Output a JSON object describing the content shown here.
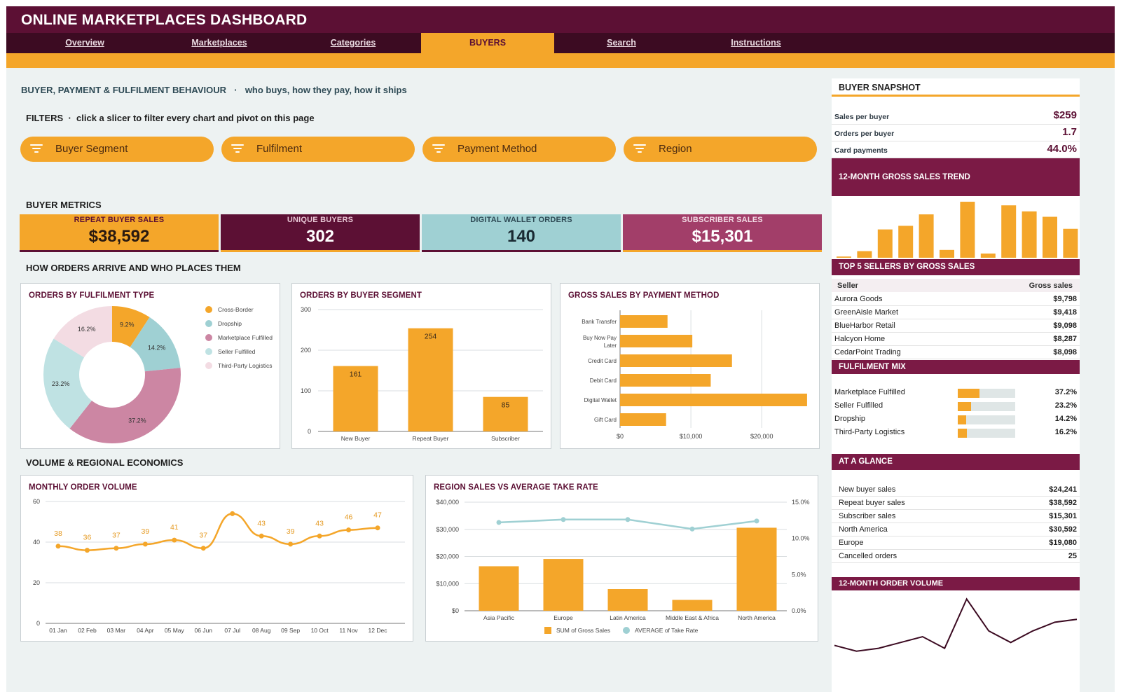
{
  "header": {
    "title": "ONLINE MARKETPLACES DASHBOARD"
  },
  "tabs": [
    {
      "label": "Overview",
      "active": false
    },
    {
      "label": "Marketplaces",
      "active": false
    },
    {
      "label": "Categories",
      "active": false
    },
    {
      "label": "BUYERS",
      "active": true
    },
    {
      "label": "Search",
      "active": false
    },
    {
      "label": "Instructions",
      "active": false
    }
  ],
  "page": {
    "heading": "BUYER, PAYMENT & FULFILMENT BEHAVIOUR",
    "heading_sub": "who buys, how they pay, how it ships",
    "filters_label": "FILTERS",
    "filters_hint": "click a slicer to filter every chart and pivot on this page"
  },
  "slicers": [
    {
      "label": "Buyer Segment"
    },
    {
      "label": "Fulfilment"
    },
    {
      "label": "Payment Method"
    },
    {
      "label": "Region"
    }
  ],
  "metrics_title": "BUYER METRICS",
  "kpis": [
    {
      "label": "REPEAT BUYER SALES",
      "value": "$38,592",
      "bg": "#f4a62a",
      "fg": "#5c1034",
      "valcolor": "#2a1a10",
      "underline": "#5c1034"
    },
    {
      "label": "UNIQUE BUYERS",
      "value": "302",
      "bg": "#5c1034",
      "fg": "#e8c7d5",
      "valcolor": "#ffffff",
      "underline": "#f4a62a"
    },
    {
      "label": "DIGITAL WALLET ORDERS",
      "value": "140",
      "bg": "#9fd0d3",
      "fg": "#2e4a55",
      "valcolor": "#1a2a33",
      "underline": "#5c1034"
    },
    {
      "label": "SUBSCRIBER SALES",
      "value": "$15,301",
      "bg": "#a23e69",
      "fg": "#f2dbe5",
      "valcolor": "#ffffff",
      "underline": "#f4a62a"
    }
  ],
  "section_orders": "HOW ORDERS ARRIVE AND WHO PLACES THEM",
  "section_volume": "VOLUME & REGIONAL ECONOMICS",
  "charts": {
    "fulfilment_type": {
      "title": "ORDERS BY FULFILMENT TYPE",
      "chart_data": {
        "type": "pie",
        "labels": [
          "Cross-Border",
          "Dropship",
          "Marketplace Fulfilled",
          "Seller Fulfilled",
          "Third-Party Logistics"
        ],
        "values": [
          9.2,
          14.2,
          37.2,
          23.2,
          16.2
        ],
        "value_labels": [
          "9.2%",
          "14.2%",
          "37.2%",
          "23.2%",
          "16.2%"
        ],
        "colors": [
          "#f4a62a",
          "#9fd0d3",
          "#cc86a3",
          "#bfe2e3",
          "#f3dce3"
        ],
        "legend": "right"
      }
    },
    "buyer_segment": {
      "title": "ORDERS BY BUYER SEGMENT",
      "chart_data": {
        "type": "bar",
        "categories": [
          "New Buyer",
          "Repeat Buyer",
          "Subscriber"
        ],
        "values": [
          161,
          254,
          85
        ],
        "ylim": [
          0,
          300
        ],
        "yticks": [
          "0",
          "100",
          "200",
          "300"
        ],
        "grid": true
      }
    },
    "payment_method": {
      "title": "GROSS SALES BY PAYMENT METHOD",
      "chart_data": {
        "type": "bar",
        "orientation": "horizontal",
        "categories": [
          "Bank Transfer",
          "Buy Now Pay Later",
          "Credit Card",
          "Debit Card",
          "Digital Wallet",
          "Gift Card"
        ],
        "category_lines": [
          [
            "Bank Transfer"
          ],
          [
            "Buy Now Pay",
            "Later"
          ],
          [
            "Credit Card"
          ],
          [
            "Debit Card"
          ],
          [
            "Digital Wallet"
          ],
          [
            "Gift Card"
          ]
        ],
        "values": [
          6700,
          10200,
          15800,
          12800,
          26400,
          6500
        ],
        "xlim": [
          0,
          27000
        ],
        "xticks": [
          "$0",
          "$10,000",
          "$20,000"
        ],
        "grid": true
      }
    },
    "monthly_volume": {
      "title": "MONTHLY ORDER VOLUME",
      "chart_data": {
        "type": "line",
        "x": [
          "01 Jan",
          "02 Feb",
          "03 Mar",
          "04 Apr",
          "05 May",
          "06 Jun",
          "07 Jul",
          "08 Aug",
          "09 Sep",
          "10 Oct",
          "11 Nov",
          "12 Dec"
        ],
        "values": [
          38,
          36,
          37,
          39,
          41,
          37,
          54,
          43,
          39,
          43,
          46,
          47
        ],
        "labels": [
          "38",
          "36",
          "37",
          "39",
          "41",
          "37",
          "",
          "43",
          "39",
          "43",
          "46",
          "47"
        ],
        "ylim": [
          0,
          60
        ],
        "yticks": [
          "0",
          "20",
          "40",
          "60"
        ],
        "grid": true
      }
    },
    "region_sales": {
      "title": "REGION SALES VS AVERAGE TAKE RATE",
      "chart_data": {
        "type": "bar",
        "categories": [
          "Asia Pacific",
          "Europe",
          "Latin America",
          "Middle East & Africa",
          "North America"
        ],
        "series": [
          {
            "name": "SUM of Gross Sales",
            "type": "bar",
            "values": [
              16400,
              19080,
              8000,
              4000,
              30592
            ]
          },
          {
            "name": "AVERAGE of Take Rate",
            "type": "line",
            "values": [
              12.2,
              12.6,
              12.6,
              11.3,
              12.4
            ]
          }
        ],
        "ylim": [
          0,
          40000
        ],
        "yticks": [
          "$0",
          "$10,000",
          "$20,000",
          "$30,000",
          "$40,000"
        ],
        "y2lim": [
          0,
          15
        ],
        "y2ticks": [
          "0.0%",
          "5.0%",
          "10.0%",
          "15.0%"
        ],
        "legend": "bottom"
      }
    }
  },
  "snapshot": {
    "title": "BUYER SNAPSHOT",
    "rows": [
      {
        "label": "Sales per buyer",
        "value": "$259"
      },
      {
        "label": "Orders per buyer",
        "value": "1.7"
      },
      {
        "label": "Card payments",
        "value": "44.0%"
      }
    ]
  },
  "trend": {
    "title": "12-MONTH GROSS SALES TREND",
    "chart_data": {
      "type": "bar",
      "values": [
        2,
        11,
        47,
        53,
        72,
        13,
        93,
        7,
        87,
        77,
        68,
        48
      ],
      "ylim": [
        0,
        100
      ]
    }
  },
  "top_sellers": {
    "title": "TOP 5 SELLERS BY GROSS SALES",
    "col_seller": "Seller",
    "col_sales": "Gross sales",
    "rows": [
      {
        "name": "Aurora Goods",
        "value": "$9,798"
      },
      {
        "name": "GreenAisle Market",
        "value": "$9,418"
      },
      {
        "name": "BlueHarbor Retail",
        "value": "$9,098"
      },
      {
        "name": "Halcyon Home",
        "value": "$8,287"
      },
      {
        "name": "CedarPoint Trading",
        "value": "$8,098"
      }
    ]
  },
  "fulfilment_mix": {
    "title": "FULFILMENT MIX",
    "rows": [
      {
        "label": "Marketplace Fulfilled",
        "value": "37.2%",
        "fraction": 0.372
      },
      {
        "label": "Seller Fulfilled",
        "value": "23.2%",
        "fraction": 0.232
      },
      {
        "label": "Dropship",
        "value": "14.2%",
        "fraction": 0.142
      },
      {
        "label": "Third-Party Logistics",
        "value": "16.2%",
        "fraction": 0.162
      }
    ]
  },
  "at_a_glance": {
    "title": "AT A GLANCE",
    "rows": [
      {
        "label": "New buyer sales",
        "value": "$24,241"
      },
      {
        "label": "Repeat buyer sales",
        "value": "$38,592"
      },
      {
        "label": "Subscriber sales",
        "value": "$15,301"
      },
      {
        "label": "North America",
        "value": "$30,592"
      },
      {
        "label": "Europe",
        "value": "$19,080"
      },
      {
        "label": "Cancelled orders",
        "value": "25"
      }
    ]
  },
  "order_volume_spark": {
    "title": "12-MONTH ORDER VOLUME",
    "chart_data": {
      "type": "line",
      "values": [
        38,
        36,
        37,
        39,
        41,
        37,
        54,
        43,
        39,
        43,
        46,
        47
      ],
      "ylim": [
        34,
        56
      ]
    }
  },
  "colors": {
    "brand": "#5c1034",
    "accent": "#f4a62a",
    "teal": "#9fd0d3"
  }
}
